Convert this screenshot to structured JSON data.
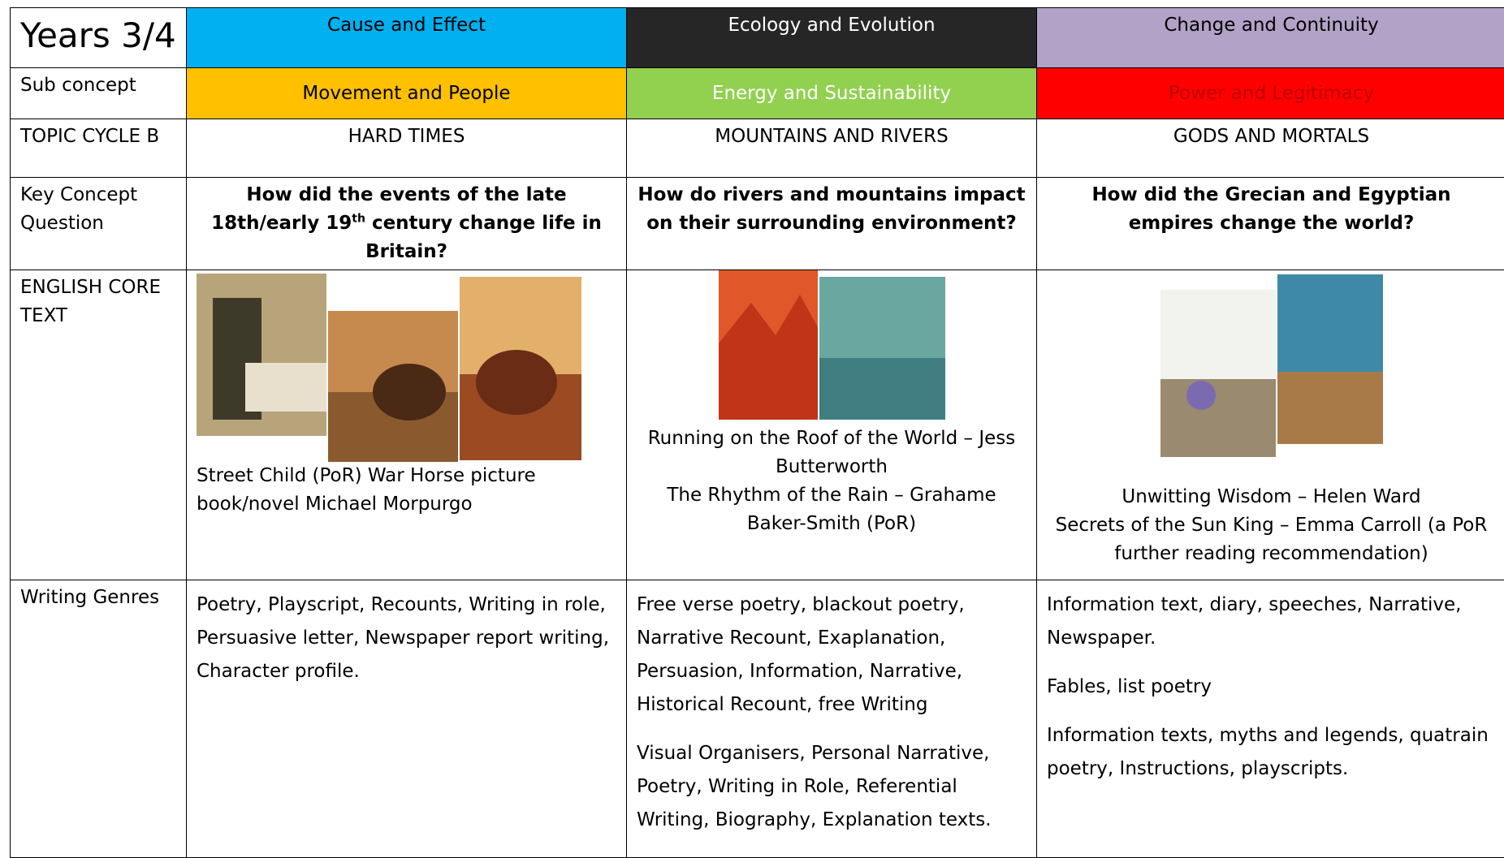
{
  "header": {
    "year": "Years 3/4",
    "concepts": [
      "Cause and Effect",
      "Ecology and Evolution",
      "Change and Continuity"
    ]
  },
  "sub_concept": {
    "label": "Sub concept",
    "values": [
      "Movement and People",
      "Energy and Sustainability",
      "Power and Legitimacy"
    ]
  },
  "topic_cycle": {
    "label": "TOPIC CYCLE B",
    "values": [
      "HARD TIMES",
      "MOUNTAINS AND RIVERS",
      "GODS AND MORTALS"
    ]
  },
  "key_question": {
    "label": "Key Concept Question",
    "values": [
      [
        "How did the events of the late 18th/early 19",
        "th",
        " century change life in Britain?"
      ],
      "How do rivers and mountains impact on their surrounding environment?",
      "How did the Grecian and Egyptian empires change the world?"
    ]
  },
  "core_text": {
    "label": "ENGLISH CORE TEXT",
    "values": [
      [
        "Street Child (PoR) War Horse picture book/novel   Michael Morpurgo"
      ],
      [
        "Running on the Roof of the World – Jess Butterworth",
        "The Rhythm of the Rain – Grahame Baker-Smith (PoR)"
      ],
      [
        "Unwitting Wisdom – Helen Ward",
        "Secrets of the Sun King – Emma Carroll (a PoR further reading recommendation)"
      ]
    ]
  },
  "writing_genres": {
    "label": "Writing Genres",
    "values": [
      [
        "Poetry, Playscript, Recounts, Writing in role, Persuasive letter, Newspaper report writing, Character profile."
      ],
      [
        "Free verse poetry, blackout poetry, Narrative Recount, Exaplanation, Persuasion, Information, Narrative, Historical Recount, free Writing",
        "Visual Organisers, Personal Narrative, Poetry, Writing in Role, Referential Writing, Biography, Explanation texts."
      ],
      [
        "Information text, diary, speeches, Narrative, Newspaper.",
        "Fables, list poetry",
        "Information texts, myths and legends, quatrain poetry, Instructions, playscripts."
      ]
    ]
  }
}
